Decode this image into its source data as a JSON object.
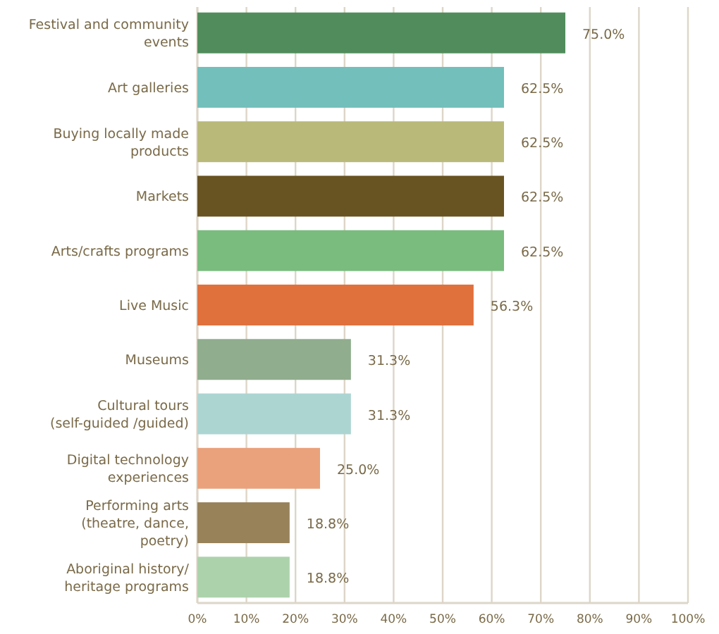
{
  "chart_data": {
    "type": "bar",
    "orientation": "horizontal",
    "categories": [
      "Festival and community events",
      "Art galleries",
      "Buying locally made products",
      "Markets",
      "Arts/crafts programs",
      "Live Music",
      "Museums",
      "Cultural tours (self-guided /guided)",
      "Digital technology experiences",
      "Performing arts (theatre, dance, poetry)",
      "Aboriginal history/ heritage programs"
    ],
    "values": [
      75.0,
      62.5,
      62.5,
      62.5,
      62.5,
      56.3,
      31.3,
      31.3,
      25.0,
      18.8,
      18.8
    ],
    "value_labels": [
      "75.0%",
      "62.5%",
      "62.5%",
      "62.5%",
      "62.5%",
      "56.3%",
      "31.3%",
      "31.3%",
      "25.0%",
      "18.8%",
      "18.8%"
    ],
    "colors": [
      "#518d5c",
      "#72bfbb",
      "#b9b97a",
      "#685322",
      "#7abb7e",
      "#e0703c",
      "#90ad8e",
      "#acd5d2",
      "#eaa27c",
      "#98825a",
      "#acd2ab"
    ],
    "xlim": [
      0,
      100
    ],
    "xticks": [
      {
        "value": 0,
        "label": "0%"
      },
      {
        "value": 10,
        "label": "10%"
      },
      {
        "value": 20,
        "label": "20%"
      },
      {
        "value": 30,
        "label": "30%"
      },
      {
        "value": 40,
        "label": "40%"
      },
      {
        "value": 50,
        "label": "50%"
      },
      {
        "value": 60,
        "label": "60%"
      },
      {
        "value": 70,
        "label": "70%"
      },
      {
        "value": 80,
        "label": "80%"
      },
      {
        "value": 90,
        "label": "90%"
      },
      {
        "value": 100,
        "label": "100%"
      }
    ],
    "grid": "x"
  }
}
